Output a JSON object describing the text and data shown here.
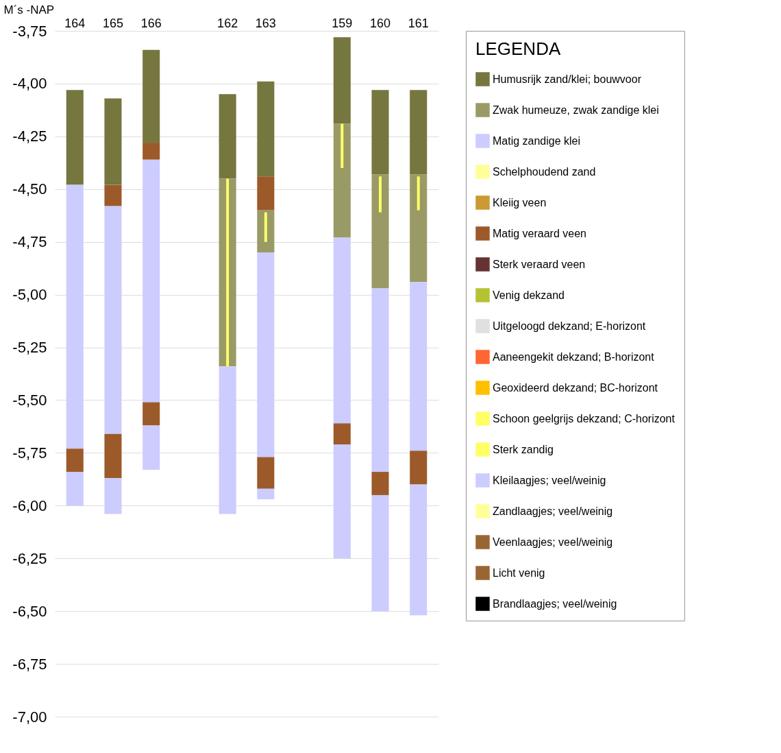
{
  "chart_data": {
    "type": "bar",
    "ylabel": "M´s -NAP",
    "legend_title": "LEGENDA",
    "legend": "right",
    "grid": "y",
    "categories": [
      "164",
      "165",
      "166",
      null,
      "162",
      "163",
      null,
      "159",
      "160",
      "161"
    ],
    "ylim": [
      -7.0,
      -3.75
    ],
    "yticks": [
      {
        "value": -3.75,
        "label": "-3,75"
      },
      {
        "value": -4.0,
        "label": "-4,00"
      },
      {
        "value": -4.25,
        "label": "-4,25"
      },
      {
        "value": -4.5,
        "label": "-4,50"
      },
      {
        "value": -4.75,
        "label": "-4,75"
      },
      {
        "value": -5.0,
        "label": "-5,00"
      },
      {
        "value": -5.25,
        "label": "-5,25"
      },
      {
        "value": -5.5,
        "label": "-5,50"
      },
      {
        "value": -5.75,
        "label": "-5,75"
      },
      {
        "value": -6.0,
        "label": "-6,00"
      },
      {
        "value": -6.25,
        "label": "-6,25"
      },
      {
        "value": -6.5,
        "label": "-6,50"
      },
      {
        "value": -6.75,
        "label": "-6,75"
      },
      {
        "value": -7.0,
        "label": "-7,00"
      }
    ],
    "series": [
      {
        "name": "Humusrijk zand/klei; bouwvoor",
        "color": "#76763f",
        "values": [
          0.45,
          0.41,
          0.44,
          null,
          0.4,
          0.45,
          null,
          0.41,
          0.4,
          0.4
        ],
        "base": [
          -4.48,
          -4.48,
          -4.28,
          null,
          -4.45,
          -4.44,
          null,
          -4.19,
          -4.43,
          -4.43
        ]
      },
      {
        "name": "Zwak humeuze, zwak zandige klei",
        "color": "#9a9a66",
        "values": [
          null,
          null,
          null,
          null,
          0.89,
          0.2,
          null,
          0.54,
          0.54,
          0.51
        ],
        "base": [
          null,
          null,
          null,
          null,
          -5.34,
          -4.8,
          null,
          -4.73,
          -4.97,
          -4.94
        ]
      },
      {
        "name": "Matig zandige klei",
        "color": "#ccccff",
        "values": [
          1.25,
          1.08,
          1.15,
          null,
          0.7,
          0.97,
          null,
          0.88,
          0.87,
          0.8
        ],
        "base": [
          -5.73,
          -5.66,
          -5.51,
          null,
          -6.04,
          -5.77,
          null,
          -5.61,
          -5.84,
          -5.74
        ]
      },
      {
        "name": "Schelphoudend zand",
        "color": "#ffff99",
        "values": [
          null,
          null,
          null,
          null,
          null,
          null,
          null,
          null,
          null,
          null
        ]
      },
      {
        "name": "Kleiig veen",
        "color": "#cc9933",
        "values": [
          null,
          null,
          null,
          null,
          null,
          null,
          null,
          null,
          null,
          null
        ]
      },
      {
        "name": "Matig veraard veen",
        "color": "#9c5a2a",
        "values": [
          0.11,
          0.21,
          0.11,
          null,
          null,
          0.15,
          null,
          0.1,
          0.11,
          0.16
        ],
        "base": [
          -5.84,
          -5.87,
          -5.62,
          null,
          null,
          -5.92,
          null,
          -5.71,
          -5.95,
          -5.9
        ]
      },
      {
        "name": "Sterk veraard veen",
        "color": "#663333",
        "values": [
          null,
          null,
          null,
          null,
          null,
          null,
          null,
          null,
          null,
          null
        ]
      },
      {
        "name": "Venig dekzand",
        "color": "#b5c234",
        "values": [
          null,
          null,
          null,
          null,
          null,
          null,
          null,
          null,
          null,
          null
        ]
      },
      {
        "name": "Uitgeloogd dekzand; E-horizont",
        "color": "#e0e0e0",
        "values": [
          null,
          null,
          null,
          null,
          null,
          null,
          null,
          null,
          null,
          null
        ]
      },
      {
        "name": "Aaneengekit dekzand; B-horizont",
        "color": "#ff6633",
        "values": [
          null,
          null,
          null,
          null,
          null,
          null,
          null,
          null,
          null,
          null
        ]
      },
      {
        "name": "Geoxideerd dekzand; BC-horizont",
        "color": "#ffc000",
        "values": [
          null,
          null,
          null,
          null,
          null,
          null,
          null,
          null,
          null,
          null
        ]
      },
      {
        "name": "Schoon geelgrijs dekzand; C-horizont",
        "color": "#ffff66",
        "values": [
          null,
          null,
          null,
          null,
          null,
          null,
          null,
          null,
          null,
          null
        ]
      },
      {
        "name": "Sterk zandig",
        "color": "#ffff66",
        "line_style": "dotted",
        "values": [
          null,
          null,
          null,
          null,
          0.89,
          0.14,
          null,
          0.21,
          0.17,
          0.16
        ],
        "base": [
          null,
          null,
          null,
          null,
          -5.34,
          -4.75,
          null,
          -4.4,
          -4.61,
          -4.6
        ]
      },
      {
        "name": "Kleilaagjes; veel/weinig",
        "color": "#ccccff",
        "values": [
          null,
          null,
          null,
          null,
          null,
          null,
          null,
          null,
          null,
          null
        ]
      },
      {
        "name": "Zandlaagjes; veel/weinig",
        "color": "#ffff99",
        "values": [
          null,
          null,
          null,
          null,
          null,
          null,
          null,
          null,
          null,
          null
        ]
      },
      {
        "name": "Veenlaagjes; veel/weinig",
        "color": "#996633",
        "values": [
          null,
          null,
          null,
          null,
          null,
          null,
          null,
          null,
          null,
          null
        ]
      },
      {
        "name": "Licht venig",
        "color": "#996633",
        "values": [
          null,
          null,
          null,
          null,
          null,
          null,
          null,
          null,
          null,
          null
        ]
      },
      {
        "name": "Brandlaagjes; veel/weinig",
        "color": "#000000",
        "values": [
          null,
          null,
          null,
          null,
          null,
          null,
          null,
          null,
          null,
          null
        ]
      },
      {
        "color": "#ccccff",
        "values": [
          0.16,
          0.17,
          0.21,
          null,
          null,
          0.05,
          null,
          0.54,
          0.55,
          0.62
        ],
        "base": [
          -6.0,
          -6.04,
          -5.83,
          null,
          null,
          -5.97,
          null,
          -6.25,
          -6.5,
          -6.52
        ]
      },
      {
        "color": "#9c5a2a",
        "values": [
          null,
          0.1,
          0.08,
          null,
          null,
          0.16,
          null,
          null,
          null,
          null
        ],
        "base": [
          null,
          -4.58,
          -4.36,
          null,
          null,
          -4.6,
          null,
          null,
          null,
          null
        ]
      }
    ]
  }
}
